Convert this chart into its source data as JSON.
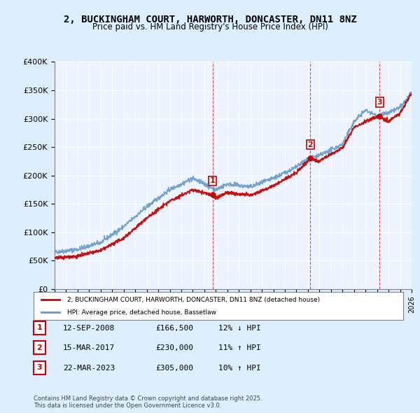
{
  "title": "2, BUCKINGHAM COURT, HARWORTH, DONCASTER, DN11 8NZ",
  "subtitle": "Price paid vs. HM Land Registry's House Price Index (HPI)",
  "red_label": "2, BUCKINGHAM COURT, HARWORTH, DONCASTER, DN11 8NZ (detached house)",
  "blue_label": "HPI: Average price, detached house, Bassetlaw",
  "sales": [
    {
      "num": 1,
      "date": "12-SEP-2008",
      "price": 166500,
      "hpi_diff": "12% ↓ HPI",
      "year": 2008.71
    },
    {
      "num": 2,
      "date": "15-MAR-2017",
      "price": 230000,
      "hpi_diff": "11% ↑ HPI",
      "year": 2017.21
    },
    {
      "num": 3,
      "date": "22-MAR-2023",
      "price": 305000,
      "hpi_diff": "10% ↑ HPI",
      "year": 2023.22
    }
  ],
  "footer": "Contains HM Land Registry data © Crown copyright and database right 2025.\nThis data is licensed under the Open Government Licence v3.0.",
  "ylim": [
    0,
    400000
  ],
  "xlim": [
    1995,
    2026
  ],
  "yticks": [
    0,
    50000,
    100000,
    150000,
    200000,
    250000,
    300000,
    350000,
    400000
  ],
  "ytick_labels": [
    "£0",
    "£50K",
    "£100K",
    "£150K",
    "£200K",
    "£250K",
    "£300K",
    "£350K",
    "£400K"
  ],
  "red_color": "#cc0000",
  "blue_color": "#6699cc",
  "bg_color": "#ddeeff",
  "plot_bg": "#eef4ff"
}
